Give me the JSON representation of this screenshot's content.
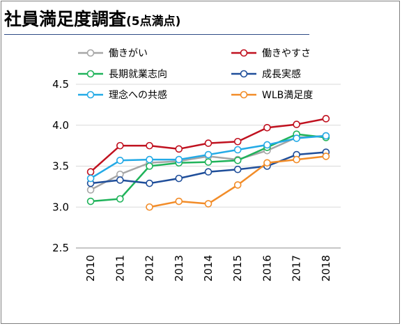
{
  "title": "社員満足度調査",
  "subtitle": "(5点満点)",
  "chart_data": {
    "type": "line",
    "x": [
      2010,
      2011,
      2012,
      2013,
      2014,
      2015,
      2016,
      2017,
      2018
    ],
    "ylim": [
      2.5,
      4.5
    ],
    "yticks": [
      "2.5",
      "3.0",
      "3.5",
      "4.0",
      "4.5"
    ],
    "grid": true,
    "legend_position": "top",
    "series": [
      {
        "name": "働きがい",
        "color": "#a6a6a6",
        "values": [
          3.21,
          3.4,
          3.54,
          3.56,
          3.62,
          3.58,
          3.69,
          3.85,
          3.87
        ]
      },
      {
        "name": "働きやすさ",
        "color": "#c0111f",
        "values": [
          3.43,
          3.75,
          3.75,
          3.71,
          3.78,
          3.8,
          3.97,
          4.01,
          4.08
        ]
      },
      {
        "name": "長期就業志向",
        "color": "#1fb35a",
        "values": [
          3.07,
          3.1,
          3.5,
          3.54,
          3.55,
          3.57,
          3.73,
          3.89,
          3.85
        ]
      },
      {
        "name": "成長実感",
        "color": "#1f4e9a",
        "values": [
          3.29,
          3.33,
          3.29,
          3.35,
          3.43,
          3.46,
          3.5,
          3.64,
          3.67
        ]
      },
      {
        "name": "理念への共感",
        "color": "#23aae6",
        "values": [
          3.35,
          3.57,
          3.58,
          3.58,
          3.64,
          3.7,
          3.76,
          3.84,
          3.87
        ]
      },
      {
        "name": "WLB満足度",
        "color": "#f28c28",
        "values": [
          null,
          null,
          3.0,
          3.07,
          3.04,
          3.27,
          3.54,
          3.58,
          3.62
        ]
      }
    ]
  }
}
